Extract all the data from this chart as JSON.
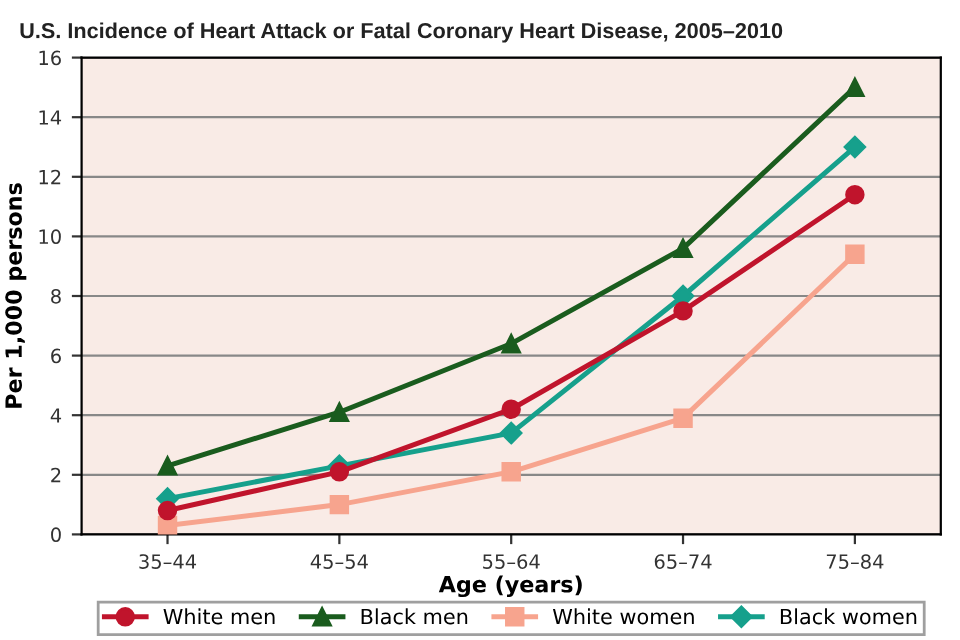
{
  "chart_data": {
    "type": "line",
    "title": "U.S. Incidence of Heart Attack or Fatal Coronary Heart Disease, 2005–2010",
    "xlabel": "Age (years)",
    "ylabel": "Per 1,000 persons",
    "categories": [
      "35–44",
      "45–54",
      "55–64",
      "65–74",
      "75–84"
    ],
    "series": [
      {
        "name": "White men",
        "color": "#c0142c",
        "marker": "circle",
        "values": [
          0.8,
          2.1,
          4.2,
          7.5,
          11.4
        ]
      },
      {
        "name": "Black men",
        "color": "#1a5c1e",
        "marker": "triangle",
        "values": [
          2.3,
          4.1,
          6.4,
          9.6,
          15.0
        ]
      },
      {
        "name": "White women",
        "color": "#f7a48e",
        "marker": "square",
        "values": [
          0.3,
          1.0,
          2.1,
          3.9,
          9.4
        ]
      },
      {
        "name": "Black women",
        "color": "#16a08c",
        "marker": "diamond",
        "values": [
          1.2,
          2.3,
          3.4,
          8.0,
          13.0
        ]
      }
    ],
    "ylim": [
      0,
      16
    ],
    "yticks": [
      0,
      2,
      4,
      6,
      8,
      10,
      12,
      14,
      16
    ],
    "grid": "y",
    "legend": "bottom",
    "line_style": "solid"
  }
}
